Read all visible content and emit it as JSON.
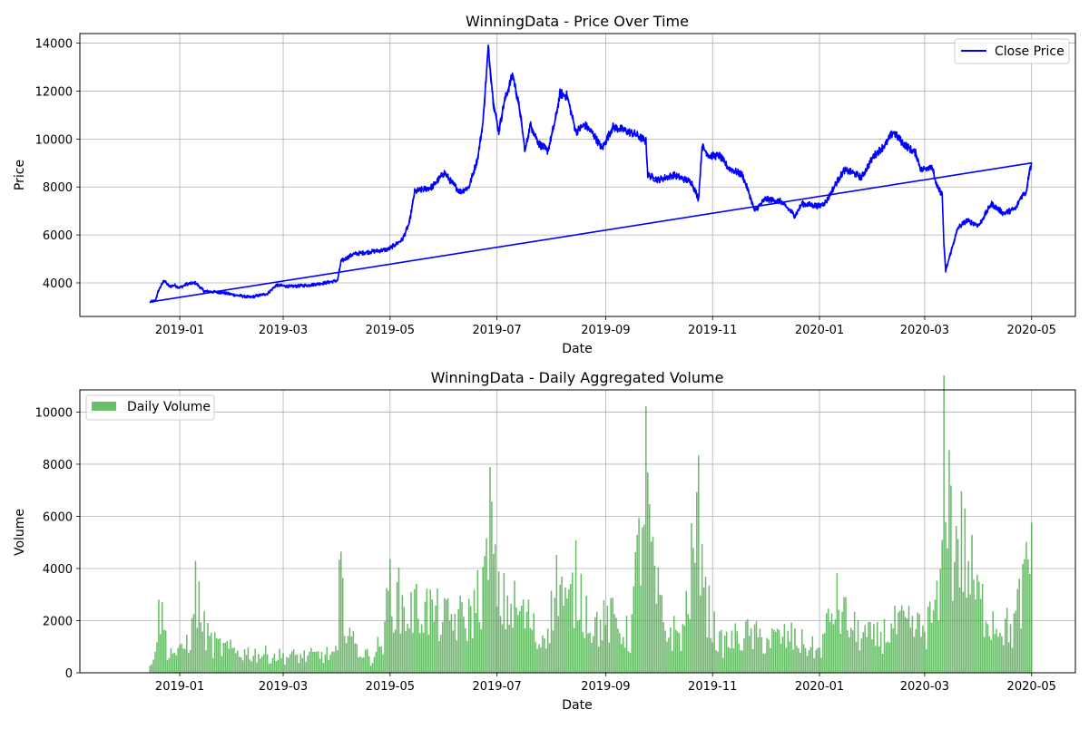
{
  "chart_data": [
    {
      "type": "line",
      "title": "WinningData - Price Over Time",
      "xlabel": "Date",
      "ylabel": "Price",
      "x_ticks": [
        "2019-01",
        "2019-03",
        "2019-05",
        "2019-07",
        "2019-09",
        "2019-11",
        "2020-01",
        "2020-03",
        "2020-05"
      ],
      "xlim": [
        "2018-11-05",
        "2020-05-26"
      ],
      "y_ticks": [
        4000,
        6000,
        8000,
        10000,
        12000,
        14000
      ],
      "ylim": [
        2600,
        14400
      ],
      "grid": true,
      "legend_position": "top-right",
      "series": [
        {
          "name": "Close Price",
          "color": "#0000ff",
          "points": [
            [
              "2018-12-15",
              3200
            ],
            [
              "2018-12-18",
              3250
            ],
            [
              "2018-12-20",
              3700
            ],
            [
              "2018-12-23",
              4100
            ],
            [
              "2018-12-26",
              3850
            ],
            [
              "2018-12-29",
              3900
            ],
            [
              "2019-01-01",
              3800
            ],
            [
              "2019-01-05",
              3950
            ],
            [
              "2019-01-10",
              4000
            ],
            [
              "2019-01-15",
              3650
            ],
            [
              "2019-01-25",
              3600
            ],
            [
              "2019-02-01",
              3500
            ],
            [
              "2019-02-10",
              3400
            ],
            [
              "2019-02-20",
              3550
            ],
            [
              "2019-02-25",
              3900
            ],
            [
              "2019-03-05",
              3850
            ],
            [
              "2019-03-15",
              3900
            ],
            [
              "2019-03-25",
              4000
            ],
            [
              "2019-04-01",
              4100
            ],
            [
              "2019-04-03",
              4900
            ],
            [
              "2019-04-10",
              5200
            ],
            [
              "2019-04-20",
              5300
            ],
            [
              "2019-04-30",
              5400
            ],
            [
              "2019-05-08",
              5800
            ],
            [
              "2019-05-12",
              6500
            ],
            [
              "2019-05-15",
              7800
            ],
            [
              "2019-05-20",
              7900
            ],
            [
              "2019-05-25",
              8000
            ],
            [
              "2019-06-01",
              8600
            ],
            [
              "2019-06-05",
              8200
            ],
            [
              "2019-06-10",
              7800
            ],
            [
              "2019-06-15",
              8000
            ],
            [
              "2019-06-20",
              9200
            ],
            [
              "2019-06-23",
              10700
            ],
            [
              "2019-06-26",
              13800
            ],
            [
              "2019-06-29",
              11500
            ],
            [
              "2019-07-02",
              10300
            ],
            [
              "2019-07-05",
              11500
            ],
            [
              "2019-07-10",
              12700
            ],
            [
              "2019-07-14",
              11200
            ],
            [
              "2019-07-17",
              9500
            ],
            [
              "2019-07-20",
              10600
            ],
            [
              "2019-07-25",
              9800
            ],
            [
              "2019-07-30",
              9500
            ],
            [
              "2019-08-03",
              10700
            ],
            [
              "2019-08-06",
              11900
            ],
            [
              "2019-08-10",
              11800
            ],
            [
              "2019-08-15",
              10300
            ],
            [
              "2019-08-20",
              10600
            ],
            [
              "2019-08-25",
              10200
            ],
            [
              "2019-08-30",
              9600
            ],
            [
              "2019-09-05",
              10500
            ],
            [
              "2019-09-10",
              10400
            ],
            [
              "2019-09-18",
              10200
            ],
            [
              "2019-09-24",
              9900
            ],
            [
              "2019-09-25",
              8500
            ],
            [
              "2019-10-01",
              8300
            ],
            [
              "2019-10-10",
              8500
            ],
            [
              "2019-10-20",
              8200
            ],
            [
              "2019-10-24",
              7500
            ],
            [
              "2019-10-26",
              9700
            ],
            [
              "2019-10-30",
              9300
            ],
            [
              "2019-11-05",
              9300
            ],
            [
              "2019-11-10",
              8800
            ],
            [
              "2019-11-18",
              8500
            ],
            [
              "2019-11-22",
              7700
            ],
            [
              "2019-11-25",
              7000
            ],
            [
              "2019-12-01",
              7500
            ],
            [
              "2019-12-10",
              7400
            ],
            [
              "2019-12-18",
              6800
            ],
            [
              "2019-12-22",
              7300
            ],
            [
              "2020-01-01",
              7200
            ],
            [
              "2020-01-05",
              7400
            ],
            [
              "2020-01-10",
              8100
            ],
            [
              "2020-01-15",
              8700
            ],
            [
              "2020-01-20",
              8600
            ],
            [
              "2020-01-25",
              8400
            ],
            [
              "2020-02-01",
              9300
            ],
            [
              "2020-02-08",
              9800
            ],
            [
              "2020-02-12",
              10300
            ],
            [
              "2020-02-18",
              9800
            ],
            [
              "2020-02-25",
              9400
            ],
            [
              "2020-02-28",
              8700
            ],
            [
              "2020-03-05",
              8900
            ],
            [
              "2020-03-08",
              8000
            ],
            [
              "2020-03-11",
              7700
            ],
            [
              "2020-03-12",
              5600
            ],
            [
              "2020-03-13",
              4500
            ],
            [
              "2020-03-16",
              5300
            ],
            [
              "2020-03-20",
              6300
            ],
            [
              "2020-03-25",
              6600
            ],
            [
              "2020-04-01",
              6400
            ],
            [
              "2020-04-08",
              7300
            ],
            [
              "2020-04-15",
              6900
            ],
            [
              "2020-04-22",
              7100
            ],
            [
              "2020-04-25",
              7600
            ],
            [
              "2020-04-28",
              7800
            ],
            [
              "2020-04-30",
              8800
            ],
            [
              "2020-05-01",
              8900
            ]
          ]
        }
      ]
    },
    {
      "type": "bar",
      "title": "WinningData - Daily Aggregated Volume",
      "xlabel": "Date",
      "ylabel": "Volume",
      "x_ticks": [
        "2019-01",
        "2019-03",
        "2019-05",
        "2019-07",
        "2019-09",
        "2019-11",
        "2020-01",
        "2020-03",
        "2020-05"
      ],
      "xlim": [
        "2018-11-05",
        "2020-05-26"
      ],
      "y_ticks": [
        0,
        2000,
        4000,
        6000,
        8000,
        10000
      ],
      "ylim": [
        0,
        10850
      ],
      "grid": true,
      "legend_position": "top-left",
      "series": [
        {
          "name": "Daily Volume",
          "color": "#2ca02c",
          "opacity": 0.7,
          "anchors": [
            [
              "2018-12-15",
              300
            ],
            [
              "2018-12-18",
              1200
            ],
            [
              "2018-12-21",
              2800
            ],
            [
              "2018-12-25",
              1000
            ],
            [
              "2019-01-01",
              800
            ],
            [
              "2019-01-08",
              1700
            ],
            [
              "2019-01-10",
              3600
            ],
            [
              "2019-01-15",
              1800
            ],
            [
              "2019-01-20",
              1200
            ],
            [
              "2019-02-01",
              900
            ],
            [
              "2019-02-15",
              800
            ],
            [
              "2019-03-01",
              700
            ],
            [
              "2019-03-15",
              700
            ],
            [
              "2019-04-01",
              800
            ],
            [
              "2019-04-02",
              3800
            ],
            [
              "2019-04-10",
              1200
            ],
            [
              "2019-04-20",
              600
            ],
            [
              "2019-04-28",
              1500
            ],
            [
              "2019-04-30",
              3800
            ],
            [
              "2019-05-10",
              2500
            ],
            [
              "2019-05-20",
              2800
            ],
            [
              "2019-06-01",
              2200
            ],
            [
              "2019-06-15",
              2300
            ],
            [
              "2019-06-25",
              4000
            ],
            [
              "2019-06-26",
              7700
            ],
            [
              "2019-07-01",
              3000
            ],
            [
              "2019-07-10",
              2800
            ],
            [
              "2019-07-20",
              2200
            ],
            [
              "2019-07-25",
              1200
            ],
            [
              "2019-08-01",
              2500
            ],
            [
              "2019-08-05",
              4200
            ],
            [
              "2019-08-10",
              2500
            ],
            [
              "2019-08-15",
              3800
            ],
            [
              "2019-08-25",
              2000
            ],
            [
              "2019-09-05",
              2200
            ],
            [
              "2019-09-15",
              1500
            ],
            [
              "2019-09-24",
              8200
            ],
            [
              "2019-09-28",
              4000
            ],
            [
              "2019-10-05",
              1800
            ],
            [
              "2019-10-15",
              1600
            ],
            [
              "2019-10-23",
              6000
            ],
            [
              "2019-10-26",
              6800
            ],
            [
              "2019-10-28",
              3000
            ],
            [
              "2019-11-05",
              1200
            ],
            [
              "2019-11-20",
              1600
            ],
            [
              "2019-12-01",
              1400
            ],
            [
              "2019-12-15",
              1500
            ],
            [
              "2020-01-01",
              900
            ],
            [
              "2020-01-10",
              3000
            ],
            [
              "2020-01-20",
              1800
            ],
            [
              "2020-02-01",
              1400
            ],
            [
              "2020-02-15",
              2000
            ],
            [
              "2020-03-01",
              1800
            ],
            [
              "2020-03-10",
              3000
            ],
            [
              "2020-03-12",
              9700
            ],
            [
              "2020-03-13",
              10300
            ],
            [
              "2020-03-17",
              5000
            ],
            [
              "2020-03-20",
              6000
            ],
            [
              "2020-04-01",
              3000
            ],
            [
              "2020-04-10",
              2200
            ],
            [
              "2020-04-20",
              1800
            ],
            [
              "2020-04-30",
              4500
            ],
            [
              "2020-05-01",
              6000
            ]
          ]
        }
      ]
    }
  ]
}
